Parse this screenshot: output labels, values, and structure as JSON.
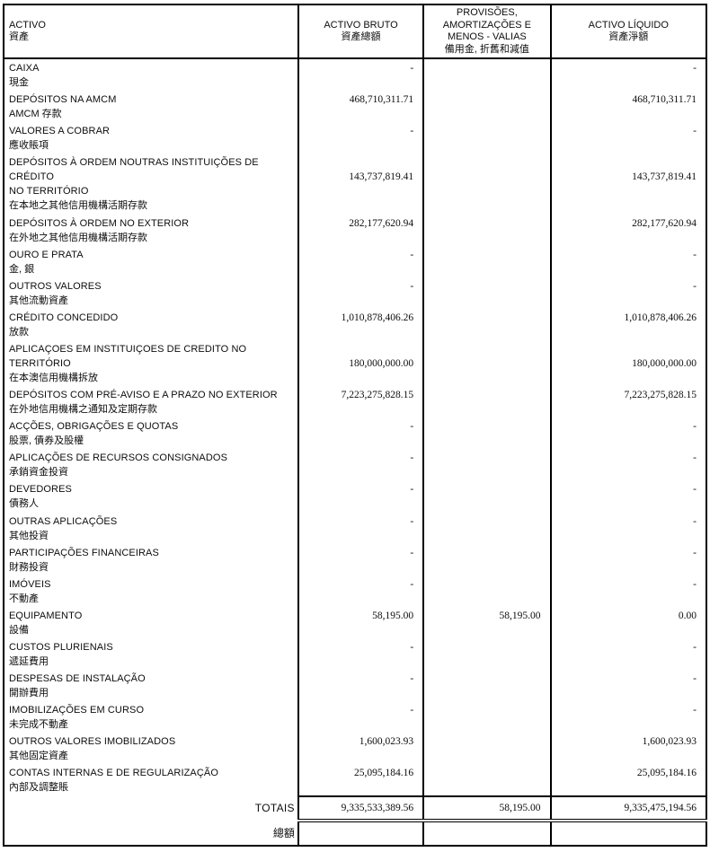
{
  "table": {
    "headers": {
      "col1_pt": "ACTIVO",
      "col1_cn": "資產",
      "col2_pt": "ACTIVO BRUTO",
      "col2_cn": "資產總額",
      "col3_pt": "PROVISÕES,\nAMORTIZAÇÕES E\nMENOS - VALIAS",
      "col3_cn": "備用金, 折舊和減值",
      "col4_pt": "ACTIVO LÍQUIDO",
      "col4_cn": "資產淨額"
    },
    "rows": [
      {
        "pt": "CAIXA",
        "cn": "現金",
        "bruto": "-",
        "prov": "",
        "liquido": "-"
      },
      {
        "pt": "DEPÓSITOS NA AMCM",
        "cn": "AMCM 存款",
        "bruto": "468,710,311.71",
        "prov": "",
        "liquido": "468,710,311.71"
      },
      {
        "pt": "VALORES A COBRAR",
        "cn": "應收賬項",
        "bruto": "-",
        "prov": "",
        "liquido": "-"
      },
      {
        "pt": "DEPÓSITOS À ORDEM NOUTRAS INSTITUIÇÕES DE CRÉDITO\nNO TERRITÓRIO",
        "cn": "在本地之其他信用機構活期存款",
        "bruto": "143,737,819.41",
        "prov": "",
        "liquido": "143,737,819.41"
      },
      {
        "pt": "DEPÓSITOS À ORDEM NO EXTERIOR",
        "cn": "在外地之其他信用機構活期存款",
        "bruto": "282,177,620.94",
        "prov": "",
        "liquido": "282,177,620.94"
      },
      {
        "pt": "OURO E PRATA",
        "cn": "金, 銀",
        "bruto": "-",
        "prov": "",
        "liquido": "-"
      },
      {
        "pt": "OUTROS VALORES",
        "cn": "其他流動資產",
        "bruto": "-",
        "prov": "",
        "liquido": "-"
      },
      {
        "pt": "CRÉDITO CONCEDIDO",
        "cn": "放款",
        "bruto": "1,010,878,406.26",
        "prov": "",
        "liquido": "1,010,878,406.26"
      },
      {
        "pt": "APLICAÇOES EM INSTITUIÇOES DE CREDITO NO\nTERRITÓRIO",
        "cn": "在本澳信用機構拆放",
        "bruto": "180,000,000.00",
        "prov": "",
        "liquido": "180,000,000.00"
      },
      {
        "pt": "DEPÓSITOS COM PRÉ-AVISO E A PRAZO NO EXTERIOR",
        "cn": "在外地信用機構之通知及定期存款",
        "bruto": "7,223,275,828.15",
        "prov": "",
        "liquido": "7,223,275,828.15"
      },
      {
        "pt": "ACÇÕES, OBRIGAÇÕES E QUOTAS",
        "cn": "股票, 債券及股權",
        "bruto": "-",
        "prov": "",
        "liquido": "-"
      },
      {
        "pt": "APLICAÇÕES DE RECURSOS CONSIGNADOS",
        "cn": "承銷資金投資",
        "bruto": "-",
        "prov": "",
        "liquido": "-"
      },
      {
        "pt": "DEVEDORES",
        "cn": "債務人",
        "bruto": "-",
        "prov": "",
        "liquido": "-"
      },
      {
        "pt": "OUTRAS APLICAÇÕES",
        "cn": "其他投資",
        "bruto": "-",
        "prov": "",
        "liquido": "-"
      },
      {
        "pt": "PARTICIPAÇÕES FINANCEIRAS",
        "cn": "財務投資",
        "bruto": "-",
        "prov": "",
        "liquido": "-"
      },
      {
        "pt": "IMÓVEIS",
        "cn": "不動產",
        "bruto": "-",
        "prov": "",
        "liquido": "-"
      },
      {
        "pt": "EQUIPAMENTO",
        "cn": "設備",
        "bruto": "58,195.00",
        "prov": "58,195.00",
        "liquido": "0.00"
      },
      {
        "pt": "CUSTOS PLURIENAIS",
        "cn": "遞延費用",
        "bruto": "-",
        "prov": "",
        "liquido": "-"
      },
      {
        "pt": "DESPESAS DE INSTALAÇÃO",
        "cn": "開辦費用",
        "bruto": "-",
        "prov": "",
        "liquido": "-"
      },
      {
        "pt": "IMOBILIZAÇÕES EM CURSO",
        "cn": "未完成不動產",
        "bruto": "-",
        "prov": "",
        "liquido": "-"
      },
      {
        "pt": "OUTROS VALORES IMOBILIZADOS",
        "cn": "其他固定資產",
        "bruto": "1,600,023.93",
        "prov": "",
        "liquido": "1,600,023.93"
      },
      {
        "pt": "CONTAS INTERNAS E DE REGULARIZAÇÃO",
        "cn": "內部及調整賬",
        "bruto": "25,095,184.16",
        "prov": "",
        "liquido": "25,095,184.16"
      }
    ],
    "totals": {
      "label_pt": "TOTAIS",
      "label_cn": "總額",
      "bruto": "9,335,533,389.56",
      "prov": "58,195.00",
      "liquido": "9,335,475,194.56"
    }
  }
}
